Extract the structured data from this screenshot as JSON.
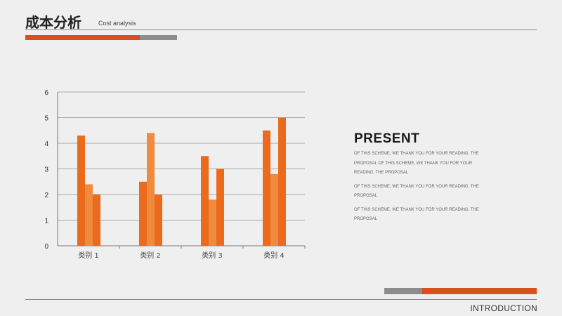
{
  "header": {
    "title": "成本分析",
    "subtitle": "Cost analysis"
  },
  "present": {
    "heading": "PRESENT",
    "paragraphs": [
      "OF THIS SCHEME, WE THANK YOU FOR YOUR READING. THE PROPOSAL OF THIS SCHEME, WE THANK YOU FOR YOUR READING. THE PROPOSAL",
      "OF THIS SCHEME, WE THANK YOU FOR YOUR READING. THE PROPOSAL",
      "OF THIS SCHEME, WE THANK YOU FOR YOUR READING. THE PROPOSAL"
    ]
  },
  "footer": {
    "label": "INTRODUCTION"
  },
  "colors": {
    "accent": "#d4501e",
    "gray_bar": "#8c8c8c",
    "series": [
      "#ec6a1c",
      "#f08a3c",
      "#ec6a1c"
    ]
  },
  "chart_data": {
    "type": "bar",
    "categories": [
      "类别 1",
      "类别 2",
      "类别 3",
      "类别 4"
    ],
    "series": [
      {
        "values": [
          4.3,
          2.5,
          3.5,
          4.5
        ]
      },
      {
        "values": [
          2.4,
          4.4,
          1.8,
          2.8
        ]
      },
      {
        "values": [
          2.0,
          2.0,
          3.0,
          5.0
        ]
      }
    ],
    "ylim": [
      0,
      6
    ],
    "yticks": [
      "0",
      "1",
      "2",
      "3",
      "4",
      "5",
      "6"
    ],
    "grid": true,
    "legend": "none"
  }
}
